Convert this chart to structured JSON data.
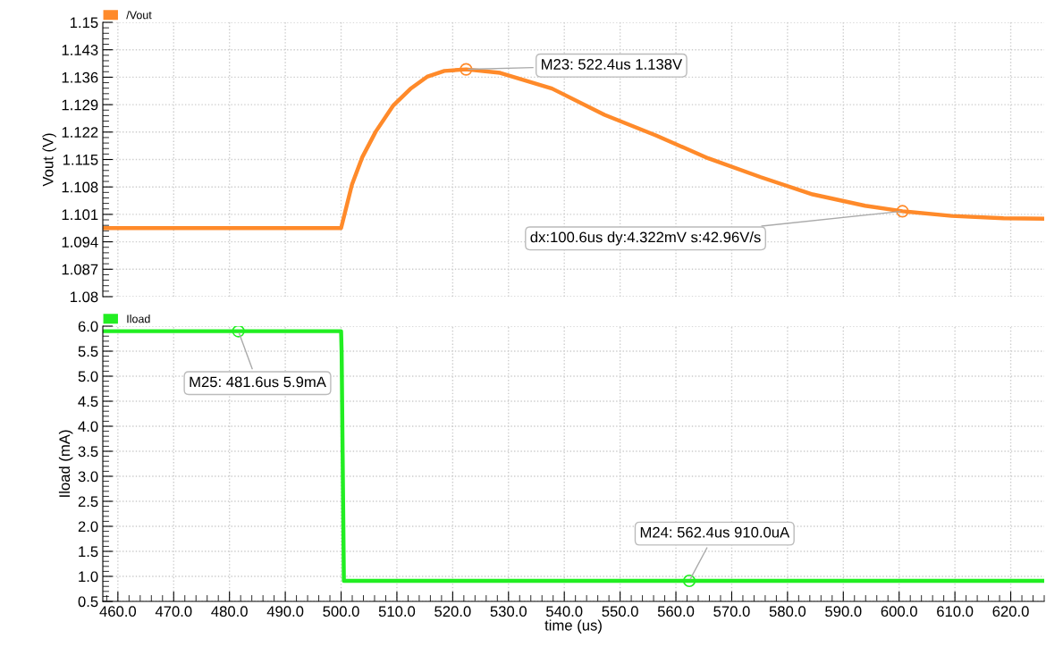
{
  "chart_data": [
    {
      "type": "line",
      "ylabel": "Vout (V)",
      "xlim": [
        457.3,
        626
      ],
      "ylim": [
        1.08,
        1.15
      ],
      "yticks": [
        1.08,
        1.087,
        1.094,
        1.101,
        1.108,
        1.115,
        1.122,
        1.129,
        1.136,
        1.143,
        1.15
      ],
      "tick_labels": "y",
      "grid": true,
      "legend": "top left",
      "series": [
        {
          "name": "/Vout",
          "color": "#ff8a2a",
          "x": [
            457.3,
            480,
            500,
            501.95,
            503.8,
            506.2,
            509.3,
            512.4,
            515.4,
            518.5,
            522.4,
            528.5,
            537.8,
            547.2,
            556.5,
            565.8,
            575.2,
            584.5,
            593.9,
            600.6,
            609.4,
            618.7,
            626
          ],
          "values": [
            1.0975,
            1.0975,
            1.0975,
            1.1086,
            1.1156,
            1.1221,
            1.1287,
            1.133,
            1.1361,
            1.1376,
            1.138,
            1.1371,
            1.1331,
            1.1264,
            1.1211,
            1.1153,
            1.1105,
            1.1061,
            1.1032,
            1.1018,
            1.1006,
            1.1,
            1.0999
          ]
        }
      ],
      "annotations": [
        {
          "text": "M23: 522.4us 1.138V",
          "x": 522.4,
          "y": 1.138
        },
        {
          "text": "dx:100.6us dy:4.322mV s:42.96V/s",
          "x": 600.6,
          "y": 1.1018
        }
      ]
    },
    {
      "type": "line",
      "ylabel": "Iload (mA)",
      "xlabel": "time (us)",
      "xlim": [
        457.3,
        626
      ],
      "ylim": [
        0.5,
        6.0
      ],
      "xticks": [
        {
          "value": 460,
          "label": "460.0"
        },
        {
          "value": 470,
          "label": "470.0"
        },
        {
          "value": 480,
          "label": "480.0"
        },
        {
          "value": 490,
          "label": "490.0"
        },
        {
          "value": 500,
          "label": "500.0"
        },
        {
          "value": 510,
          "label": "510.0"
        },
        {
          "value": 520,
          "label": "520.0"
        },
        {
          "value": 530,
          "label": "530.0"
        },
        {
          "value": 540,
          "label": "540.0"
        },
        {
          "value": 550,
          "label": "550.0"
        },
        {
          "value": 560,
          "label": "560.0"
        },
        {
          "value": 570,
          "label": "570.0"
        },
        {
          "value": 580,
          "label": "580.0"
        },
        {
          "value": 590,
          "label": "590.0"
        },
        {
          "value": 600,
          "label": "600.0"
        },
        {
          "value": 610,
          "label": "610.0"
        },
        {
          "value": 620,
          "label": "620.0"
        }
      ],
      "yticks": [
        0.5,
        {
          "value": 1,
          "label": "1.0"
        },
        1.5,
        {
          "value": 2,
          "label": "2.0"
        },
        2.5,
        {
          "value": 3,
          "label": "3.0"
        },
        3.5,
        {
          "value": 4,
          "label": "4.0"
        },
        4.5,
        {
          "value": 5,
          "label": "5.0"
        },
        5.5,
        {
          "value": 6,
          "label": "6.0"
        }
      ],
      "grid": true,
      "legend": "top left",
      "series": [
        {
          "name": "Iload",
          "color": "#22ee22",
          "x": [
            457.3,
            500,
            500.1,
            500.5,
            626
          ],
          "values": [
            5.9,
            5.9,
            5.45,
            0.91,
            0.91
          ]
        }
      ],
      "annotations": [
        {
          "text": "M25: 481.6us 5.9mA",
          "x": 481.6,
          "y": 5.9
        },
        {
          "text": "M24: 562.4us 910.0uA",
          "x": 562.4,
          "y": 0.91
        }
      ]
    }
  ]
}
